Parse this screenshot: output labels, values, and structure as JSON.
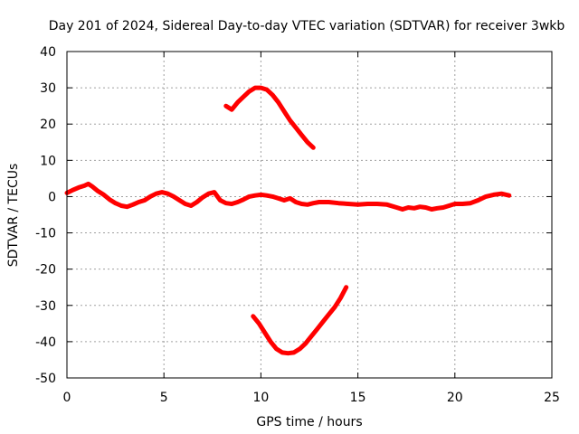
{
  "chart_data": {
    "type": "line",
    "title": "Day 201 of 2024, Sidereal Day-to-day VTEC variation (SDTVAR) for receiver 3wkb",
    "xlabel": "GPS time / hours",
    "ylabel": "SDTVAR / TECUs",
    "xlim": [
      0,
      25
    ],
    "ylim": [
      -50,
      40
    ],
    "xticks": [
      0,
      5,
      10,
      15,
      20,
      25
    ],
    "yticks": [
      -50,
      -40,
      -30,
      -20,
      -10,
      0,
      10,
      20,
      30,
      40
    ],
    "grid": true,
    "line_color": "#ff0000",
    "series": [
      {
        "name": "main",
        "x": [
          0,
          0.3,
          0.6,
          0.9,
          1.1,
          1.3,
          1.6,
          1.9,
          2.2,
          2.5,
          2.8,
          3.1,
          3.4,
          3.7,
          4.0,
          4.3,
          4.6,
          4.9,
          5.2,
          5.5,
          5.8,
          6.1,
          6.4,
          6.7,
          7.0,
          7.3,
          7.6,
          7.9,
          8.2,
          8.5,
          8.8,
          9.1,
          9.4,
          9.7,
          10.0,
          10.3,
          10.6,
          10.9,
          11.2,
          11.5,
          11.8,
          12.1,
          12.4,
          12.7,
          13.0,
          13.5,
          14.0,
          14.5,
          15.0,
          15.5,
          16.0,
          16.5,
          17.0,
          17.3,
          17.6,
          17.9,
          18.2,
          18.5,
          18.8,
          19.1,
          19.4,
          19.7,
          20.0,
          20.4,
          20.8,
          21.2,
          21.6,
          22.0,
          22.4,
          22.8
        ],
        "y": [
          1.0,
          1.8,
          2.5,
          3.0,
          3.5,
          2.8,
          1.5,
          0.5,
          -0.8,
          -1.8,
          -2.5,
          -2.8,
          -2.2,
          -1.5,
          -1.0,
          0.0,
          0.8,
          1.2,
          0.8,
          0.0,
          -1.0,
          -2.0,
          -2.5,
          -1.5,
          -0.2,
          0.8,
          1.2,
          -1.0,
          -1.8,
          -2.0,
          -1.5,
          -0.8,
          0.0,
          0.3,
          0.5,
          0.3,
          0.0,
          -0.5,
          -1.0,
          -0.5,
          -1.5,
          -2.0,
          -2.2,
          -1.8,
          -1.5,
          -1.5,
          -1.8,
          -2.0,
          -2.2,
          -2.0,
          -2.0,
          -2.2,
          -3.0,
          -3.5,
          -3.0,
          -3.2,
          -2.8,
          -3.0,
          -3.5,
          -3.2,
          -3.0,
          -2.5,
          -2.0,
          -2.0,
          -1.8,
          -1.0,
          0.0,
          0.5,
          0.8,
          0.3
        ]
      },
      {
        "name": "upper-arc",
        "x": [
          8.2,
          8.5,
          8.8,
          9.1,
          9.4,
          9.7,
          10.0,
          10.3,
          10.6,
          10.9,
          11.2,
          11.5,
          11.8,
          12.1,
          12.4,
          12.7
        ],
        "y": [
          25.0,
          24.0,
          26.0,
          27.5,
          29.0,
          30.0,
          30.0,
          29.5,
          28.0,
          26.0,
          23.5,
          21.0,
          19.0,
          17.0,
          15.0,
          13.5
        ]
      },
      {
        "name": "lower-arc",
        "x": [
          9.6,
          9.9,
          10.2,
          10.5,
          10.8,
          11.1,
          11.4,
          11.7,
          12.0,
          12.3,
          12.6,
          12.9,
          13.2,
          13.5,
          13.8,
          14.1,
          14.4
        ],
        "y": [
          -33.0,
          -35.0,
          -37.5,
          -40.0,
          -42.0,
          -43.0,
          -43.2,
          -43.0,
          -42.0,
          -40.5,
          -38.5,
          -36.5,
          -34.5,
          -32.5,
          -30.5,
          -28.0,
          -25.0
        ]
      }
    ]
  }
}
